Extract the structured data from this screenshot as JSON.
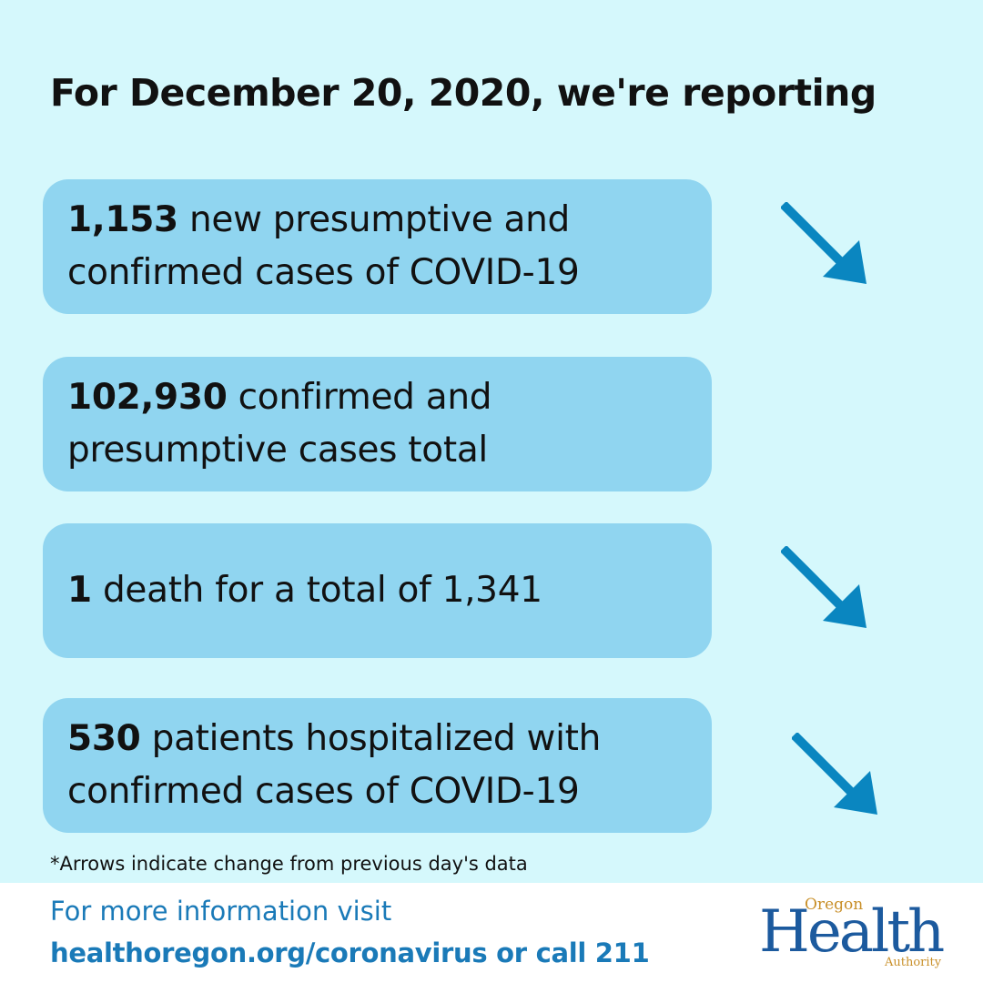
{
  "headline": "For December 20, 2020, we're reporting",
  "stats": [
    {
      "value": "1,153",
      "text": " new presumptive and confirmed cases of COVID-19",
      "arrow": "down-right-arrow"
    },
    {
      "value": "102,930",
      "text": " confirmed and presumptive cases total",
      "arrow": null
    },
    {
      "value": "1",
      "text": " death for a total of 1,341",
      "arrow": "down-right-arrow"
    },
    {
      "value": "530",
      "text": " patients hospitalized with confirmed cases of COVID-19",
      "arrow": "down-right-arrow"
    }
  ],
  "footnote": "*Arrows indicate change from previous day's data",
  "footer": {
    "line1": "For more information visit",
    "line2": "healthoregon.org/coronavirus or call 211"
  },
  "logo": {
    "oregon": "Oregon",
    "health": "Health",
    "authority": "Authority"
  },
  "colors": {
    "background": "#d5f8fc",
    "card": "#90d5f0",
    "arrow": "#0a86c0",
    "footer_text": "#1a7ab8",
    "logo_blue": "#1c5a9e",
    "logo_gold": "#c9902a"
  }
}
